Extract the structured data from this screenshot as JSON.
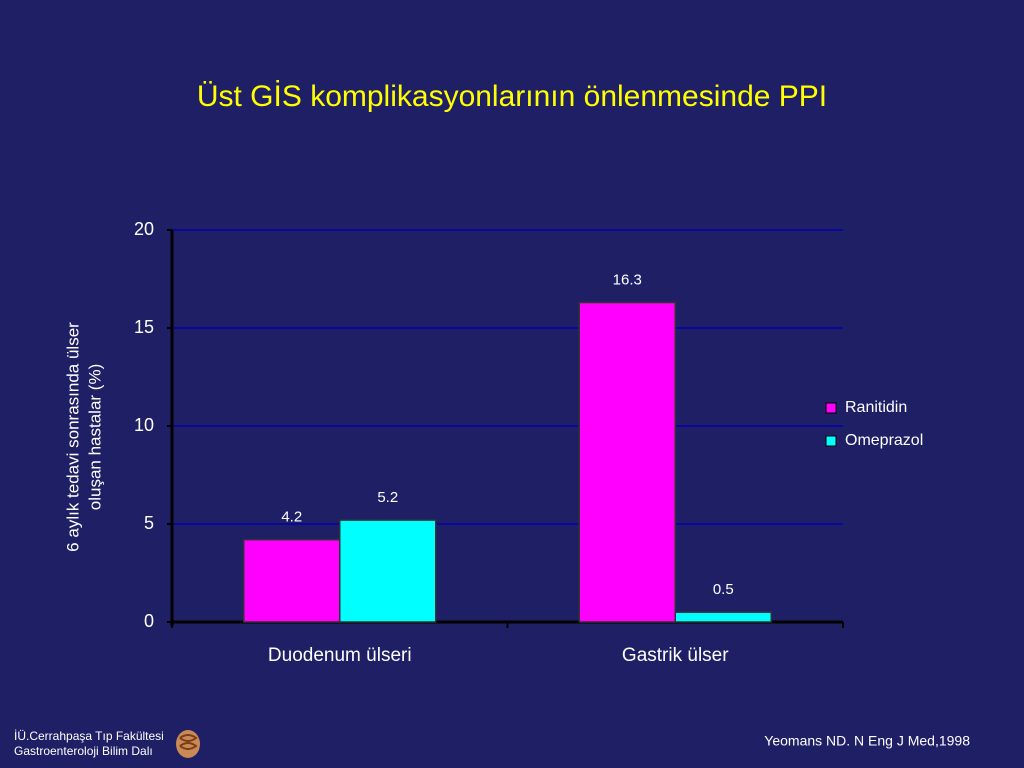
{
  "chart_data": {
    "type": "bar",
    "title": "Üst GİS komplikasyonlarının önlenmesinde PPI",
    "y_label": [
      "6 aylık tedavi sonrasında ülser",
      "oluşan hastalar (%)"
    ],
    "categories": [
      "Duodenum ülseri",
      "Gastrik ülser"
    ],
    "series": [
      {
        "name": "Ranitidin",
        "color": "#ff00ff",
        "values": [
          4.2,
          16.3
        ]
      },
      {
        "name": "Omeprazol",
        "color": "#00ffff",
        "values": [
          5.2,
          0.5
        ]
      }
    ],
    "ylim": [
      0,
      20
    ],
    "yticks": [
      0,
      5,
      10,
      15,
      20
    ],
    "grid": true,
    "legend": "right"
  },
  "footer": {
    "institution": [
      "İÜ.Cerrahpaşa Tıp Fakültesi",
      "Gastroenteroloji Bilim Dalı"
    ],
    "citation": "Yeomans ND. N Eng J Med,1998"
  }
}
